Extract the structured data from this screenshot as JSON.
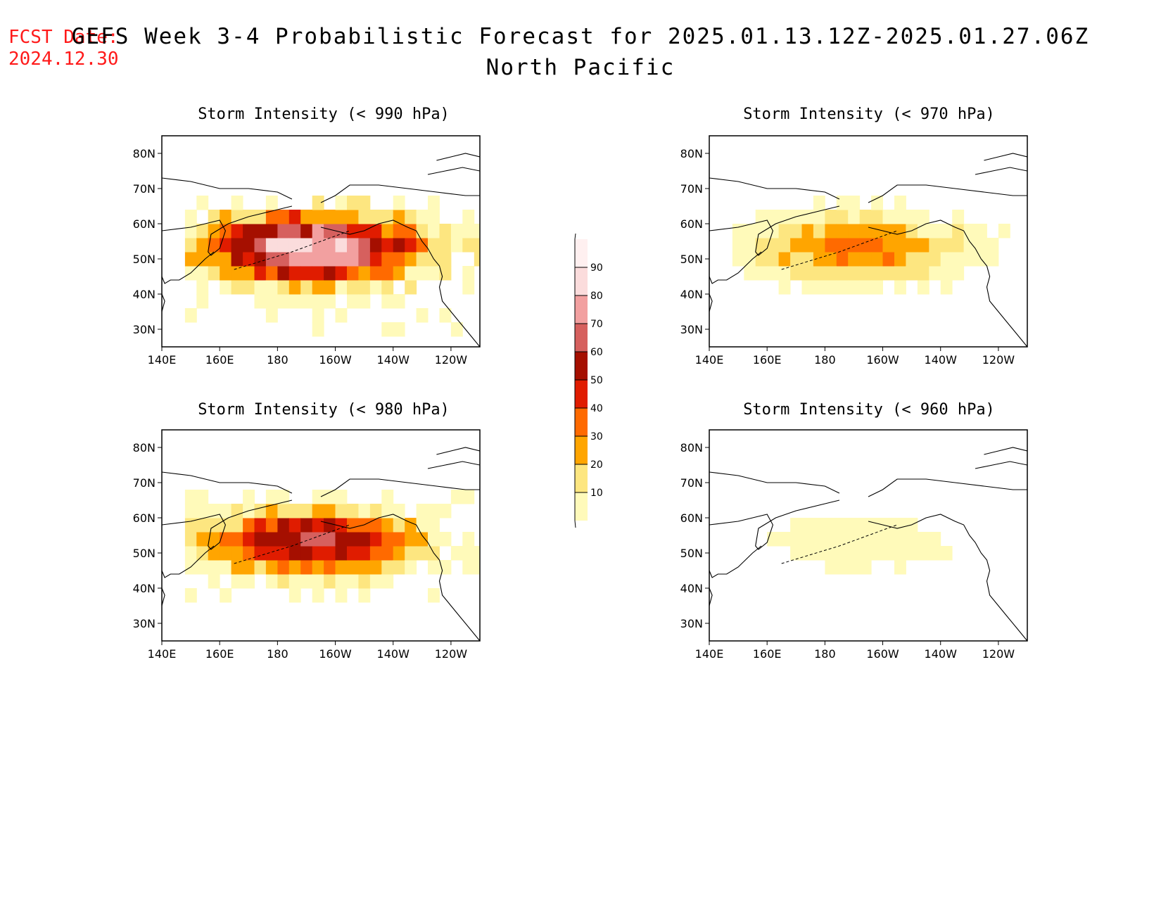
{
  "forecast_date": {
    "label": "FCST Date:",
    "value": "2024.12.30"
  },
  "title": {
    "main": "GEFS Week 3-4 Probabilistic Forecast for 2025.01.13.12Z-2025.01.27.06Z",
    "region": "North Pacific"
  },
  "axes": {
    "lat_labels": [
      "80N",
      "70N",
      "60N",
      "50N",
      "40N",
      "30N"
    ],
    "lon_labels": [
      "140E",
      "160E",
      "180",
      "160W",
      "140W",
      "120W"
    ]
  },
  "colorbar": {
    "levels": [
      "10",
      "20",
      "30",
      "40",
      "50",
      "60",
      "70",
      "80",
      "90"
    ],
    "colors": [
      "#fffaba",
      "#fde680",
      "#ffa500",
      "#ff6a00",
      "#e01c00",
      "#a50f00",
      "#d6605e",
      "#f2a0a0",
      "#fbdcdc",
      "#fff0f0"
    ]
  },
  "panels": [
    {
      "id": "p990",
      "title": "Storm Intensity (< 990 hPa)",
      "intensity": 0.95
    },
    {
      "id": "p970",
      "title": "Storm Intensity (< 970 hPa)",
      "intensity": 0.45
    },
    {
      "id": "p980",
      "title": "Storm Intensity (< 980 hPa)",
      "intensity": 0.72
    },
    {
      "id": "p960",
      "title": "Storm Intensity (< 960 hPa)",
      "intensity": 0.18
    }
  ]
}
